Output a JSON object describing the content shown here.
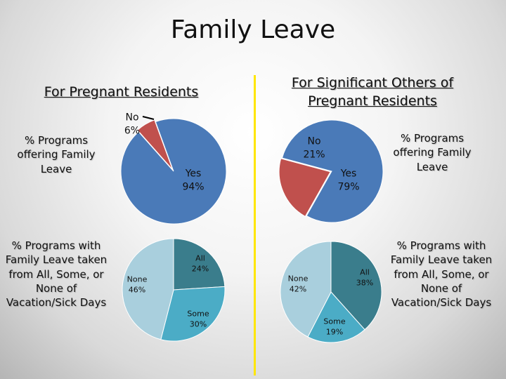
{
  "title": "Family Leave",
  "left_heading": "For Pregnant Residents",
  "right_heading": "For Significant Others of Pregnant Residents",
  "left_label_1": "% Programs offering Family Leave",
  "left_label_2": "% Programs with Family Leave taken from All, Some, or None of Vacation/Sick Days",
  "right_label_1": "% Programs offering Family Leave",
  "right_label_2": "% Programs with Family Leave taken from All, Some, or None of Vacation/Sick Days",
  "colors": {
    "yes": "#4a7ab8",
    "no": "#c0504d",
    "all": "#3a7d8c",
    "some": "#4bacc6",
    "none": "#a9cfdd",
    "divider": "#ffe600"
  },
  "chart_data": [
    {
      "type": "pie",
      "group": "For Pregnant Residents",
      "categories": [
        "Yes",
        "No"
      ],
      "values": [
        94,
        6
      ],
      "labels": [
        "Yes 94%",
        "No 6%"
      ]
    },
    {
      "type": "pie",
      "group": "For Pregnant Residents",
      "categories": [
        "All",
        "Some",
        "None"
      ],
      "values": [
        24,
        30,
        46
      ],
      "labels": [
        "All 24%",
        "Some 30%",
        "None 46%"
      ]
    },
    {
      "type": "pie",
      "group": "For Significant Others of Pregnant Residents",
      "categories": [
        "Yes",
        "No"
      ],
      "values": [
        79,
        21
      ],
      "labels": [
        "Yes 79%",
        "No 21%"
      ]
    },
    {
      "type": "pie",
      "group": "For Significant Others of Pregnant Residents",
      "categories": [
        "All",
        "Some",
        "None"
      ],
      "values": [
        38,
        19,
        42
      ],
      "labels": [
        "All 38%",
        "Some 19%",
        "None 42%"
      ]
    }
  ]
}
